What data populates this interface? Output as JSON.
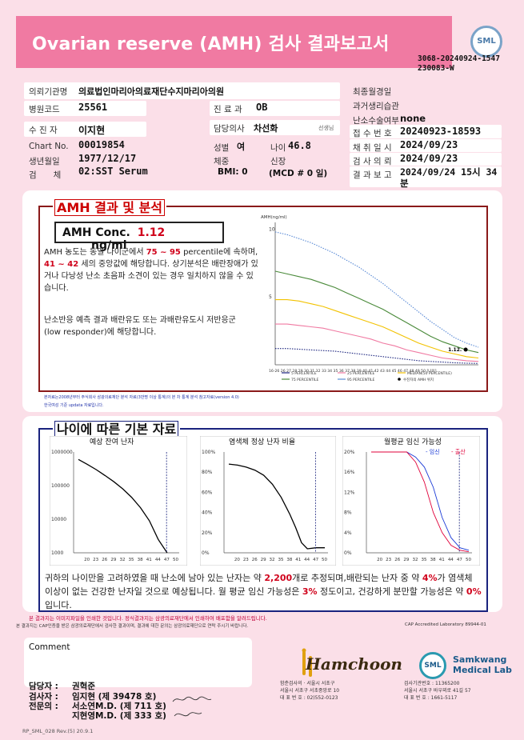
{
  "header": {
    "title": "Ovarian reserve (AMH) 검사 결과보고서",
    "logo_text": "SML",
    "report_no_line1": "3068-20240924-1547",
    "report_no_line2": "230083-W"
  },
  "info": {
    "institution_label": "의뢰기관명",
    "institution_value": "의료법인마리아의료재단수지마리아의원",
    "hospital_code_label": "병원코드",
    "hospital_code_value": "25561",
    "department_label": "진 료 과",
    "department_value": "OB",
    "patient_label": "수 진 자",
    "patient_value": "이지현",
    "doctor_label": "담당의사",
    "doctor_value": "차선화",
    "doctor_suffix": "선생님",
    "chart_label": "Chart No.",
    "chart_value": "00019854",
    "sex_label": "성별",
    "sex_value": "여",
    "age_label": "나이",
    "age_value": "46.8",
    "birth_label": "생년월일",
    "birth_value": "1977/12/17",
    "weight_label": "체중",
    "height_label": "신장",
    "specimen_label": "검　　체",
    "specimen_value": "02:SST Serum",
    "bmi_value": "BMI: 0",
    "mcd_value": "(MCD # 0 일)",
    "final_menses_label": "최종월경일",
    "pregnancy_history_label": "과거생리습관",
    "egg_label": "난소수술여부",
    "egg_value": "none",
    "receipt_no_label": "접 수 번 호",
    "receipt_no_value": "20240923-18593",
    "collect_date_label": "채 취 일 시",
    "collect_date_value": "2024/09/23",
    "test_date_label": "검 사 의 뢰",
    "test_date_value": "2024/09/23",
    "report_date_label": "결 과 보 고",
    "report_date_value": "2024/09/24 15시 34분"
  },
  "amh_section": {
    "title": "AMH 결과 및 분석",
    "conc_label": "AMH Conc.",
    "conc_value": "1.12",
    "conc_unit": "ng/ml",
    "para1_a": "AMH 농도는 동일 나이군에서 ",
    "percentile_range": "75 ~ 95",
    "para1_b": " percentile에 속하며, ",
    "age_range": "41 ~ 42",
    "para1_c": " 세의 중앙값에 해당합니다. 상기분석은 배란장애가 있거나 다낭성 난소 초음파 소견이 있는 경우 일치하지 않을 수 있습니다.",
    "para2": "난소반응 예측 결과 배란유도 또는 과배란유도시 저반응군 (low responder)에 해당합니다.",
    "note1": "본자료는2008년부터 주식회사 삼광의료재단 분석 자료(3만명 이상 통계)의 본 차 통계 분석 참고자료(version 4.0)",
    "note2": "한국여성 기준 updata 자료입니다."
  },
  "chart_data": [
    {
      "type": "line",
      "ylabel": "AMH(ng/ml)",
      "xlabel": "나이",
      "x": [
        16,
        18,
        20,
        22,
        24,
        26,
        28,
        30,
        32,
        34,
        36,
        38,
        40,
        42,
        44,
        46,
        48,
        50
      ],
      "ylim": [
        0,
        10.5
      ],
      "yticks": [
        5,
        10
      ],
      "series": [
        {
          "name": "95 PERCENTILE",
          "color": "#5b8bd6",
          "values": [
            9.8,
            9.6,
            9.3,
            9.0,
            8.6,
            8.2,
            7.7,
            7.2,
            6.6,
            6.0,
            5.3,
            4.6,
            3.9,
            3.2,
            2.6,
            2.0,
            1.6,
            1.3
          ]
        },
        {
          "name": "75 PERCENTILE",
          "color": "#4a8a3a",
          "values": [
            6.9,
            6.7,
            6.5,
            6.3,
            6.0,
            5.7,
            5.3,
            4.9,
            4.5,
            4.1,
            3.6,
            3.1,
            2.6,
            2.1,
            1.7,
            1.4,
            1.1,
            0.9
          ]
        },
        {
          "name": "MEDIAN(50 PERCENTILE)",
          "color": "#f2c200",
          "values": [
            4.8,
            4.8,
            4.7,
            4.5,
            4.3,
            4.0,
            3.7,
            3.4,
            3.1,
            2.8,
            2.4,
            2.0,
            1.6,
            1.3,
            1.0,
            0.8,
            0.6,
            0.5
          ]
        },
        {
          "name": "25 PERCENTILE",
          "color": "#f07aa2",
          "values": [
            3.0,
            3.0,
            2.9,
            2.8,
            2.7,
            2.5,
            2.3,
            2.1,
            1.9,
            1.6,
            1.4,
            1.1,
            0.9,
            0.7,
            0.5,
            0.4,
            0.3,
            0.25
          ]
        },
        {
          "name": "5 PERCENTILE",
          "color": "#1a237e",
          "values": [
            1.2,
            1.2,
            1.15,
            1.1,
            1.05,
            1.0,
            0.9,
            0.8,
            0.7,
            0.6,
            0.5,
            0.4,
            0.3,
            0.25,
            0.2,
            0.15,
            0.12,
            0.1
          ]
        }
      ],
      "point": {
        "x": 46.8,
        "y": 1.12,
        "label": "1.12",
        "name": "수진자의 AMH 위치"
      },
      "xticklabels": "16-26 26 27 28 29 30 31 32 33 34 35 36 37 38 39 40 41 42 43 44 45 46 47 48 49 50 [나이]"
    },
    {
      "type": "line",
      "title": "예상 잔여 난자",
      "scale": "log",
      "yticks": [
        "1000000",
        "100000",
        "10000",
        "1000"
      ],
      "x": [
        17,
        20,
        23,
        26,
        29,
        32,
        35,
        38,
        41,
        44,
        47
      ],
      "values": [
        600000,
        430000,
        300000,
        200000,
        130000,
        80000,
        45000,
        22000,
        9000,
        2500,
        1000
      ],
      "marker_age": 46.8
    },
    {
      "type": "line",
      "title": "염색체 정상 난자 비율",
      "yticks": [
        "100%",
        "80%",
        "60%",
        "40%",
        "20%",
        "0%"
      ],
      "x": [
        17,
        20,
        23,
        26,
        29,
        32,
        35,
        38,
        40,
        42,
        44,
        47,
        50
      ],
      "values": [
        88,
        87,
        85,
        82,
        77,
        68,
        55,
        38,
        25,
        10,
        4,
        5,
        5
      ],
      "marker_age": 46.8
    },
    {
      "type": "line",
      "title": "월평균 임신 가능성",
      "yticks": [
        "20%",
        "16%",
        "12%",
        "8%",
        "4%",
        "0%"
      ],
      "x": [
        17,
        20,
        23,
        26,
        29,
        32,
        35,
        38,
        41,
        44,
        47,
        50
      ],
      "series": [
        {
          "name": "임신",
          "color": "#1a3ad6",
          "values": [
            20,
            20,
            20,
            20,
            20,
            19,
            17,
            13,
            7,
            3,
            1,
            0.5
          ]
        },
        {
          "name": "출산",
          "color": "#e0003a",
          "values": [
            20,
            20,
            20,
            20,
            20,
            18,
            14,
            8,
            4,
            1.5,
            0.5,
            0.2
          ]
        }
      ],
      "marker_age": 46.8
    }
  ],
  "basic_section": {
    "title": "나이에 따른 기본 자료",
    "legend_pregnancy": "임신",
    "legend_birth": "출산",
    "summary_a": "귀하의 나이만을 고려하였을 때 난소에 남아 있는 난자는 약 ",
    "summary_eggs": "2,200",
    "summary_b": "개로 추정되며,배란되는 난자 중 약 ",
    "summary_pct": "4%",
    "summary_c": "가 염색체 이상이 없는 건강한 난자일 것으로 예상됩니다. 월 평균 임신 가능성은 ",
    "summary_preg": "3%",
    "summary_d": " 정도이고, 건강하게 분만할 가능성은 약 ",
    "summary_birth": "0%",
    "summary_e": " 입니다."
  },
  "footer": {
    "warn1": "본 결과지는 이미지파일을 인쇄한 것입니다. 정식결과지는 삼광의료재단에서 인쇄하여 배포함을 알려드립니다.",
    "warn2": "본 결과지는 CAP인증을 받은 삼광의료재단에서 검사한 결과이며, 결과에 대한 문의는 삼광의료재단으로 연락 주시기 바랍니다.",
    "cap": "CAP Accredited Laboratory 89944-01",
    "comment_label": "Comment",
    "manager_label": "담당자 :",
    "manager_value": "권혁준",
    "tester_label": "검사자 :",
    "tester_value": "임지현 (제 39478 호)",
    "specialist_label": "전문의 :",
    "specialist_value1": "서소연M.D. (제 711 호)",
    "specialist_value2": "지현영M.D. (제 333 호)",
    "hamchoon_name": "Hamchoon",
    "hamchoon_addr1": "함춘검사의 · 서울시 서초구",
    "hamchoon_addr2": "서울시 서초구 서초중앙로 10",
    "hamchoon_addr3": "대 표 번 호 : 02)552-0123",
    "sml_name1": "Samkwang",
    "sml_name2": "Medical Lab",
    "sml_addr1": "검사기관번호 : 11365200",
    "sml_addr2": "서울시 서초구 바우뫼로 41길 57",
    "sml_addr3": "대 표 번 호 : 1661-5117",
    "form_no": "RP_SML_028 Rev.(5) 20.9.1"
  }
}
